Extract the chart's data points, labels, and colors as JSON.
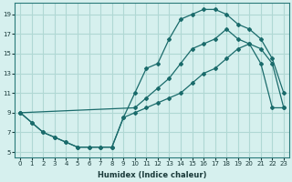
{
  "xlabel": "Humidex (Indice chaleur)",
  "bg_color": "#d6f0ee",
  "grid_color": "#b0d8d4",
  "line_color": "#1a6b6b",
  "xlim": [
    -0.5,
    23.5
  ],
  "ylim": [
    4.5,
    20.2
  ],
  "xticks": [
    0,
    1,
    2,
    3,
    4,
    5,
    6,
    7,
    8,
    9,
    10,
    11,
    12,
    13,
    14,
    15,
    16,
    17,
    18,
    19,
    20,
    21,
    22,
    23
  ],
  "yticks": [
    5,
    7,
    9,
    11,
    13,
    15,
    17,
    19
  ],
  "line1_x": [
    0,
    1,
    2,
    3,
    4,
    5,
    6,
    7,
    8,
    9,
    10,
    11,
    12,
    13,
    14,
    15,
    16,
    17,
    18,
    19,
    20,
    21,
    22,
    23
  ],
  "line1_y": [
    9.0,
    8.0,
    7.0,
    6.5,
    6.0,
    5.5,
    5.5,
    5.5,
    5.5,
    8.5,
    9.0,
    9.5,
    10.0,
    10.5,
    11.0,
    12.0,
    13.0,
    13.5,
    14.5,
    15.5,
    16.0,
    15.5,
    14.0,
    9.5
  ],
  "line2_x": [
    0,
    1,
    2,
    3,
    4,
    5,
    6,
    7,
    8,
    9,
    10,
    11,
    12,
    13,
    14,
    15,
    16,
    17,
    18,
    19,
    20,
    21,
    22,
    23
  ],
  "line2_y": [
    9.0,
    8.0,
    7.0,
    6.5,
    6.0,
    5.5,
    5.5,
    5.5,
    5.5,
    8.5,
    11.0,
    13.5,
    14.0,
    16.5,
    18.5,
    19.0,
    19.5,
    19.5,
    19.0,
    18.0,
    17.5,
    16.5,
    14.5,
    11.0
  ],
  "line3_x": [
    0,
    10,
    11,
    12,
    13,
    14,
    15,
    16,
    17,
    18,
    19,
    20,
    21,
    22,
    23
  ],
  "line3_y": [
    9.0,
    9.5,
    10.5,
    11.5,
    12.5,
    14.0,
    15.5,
    16.0,
    16.5,
    17.5,
    16.5,
    16.0,
    14.0,
    9.5,
    9.5
  ]
}
